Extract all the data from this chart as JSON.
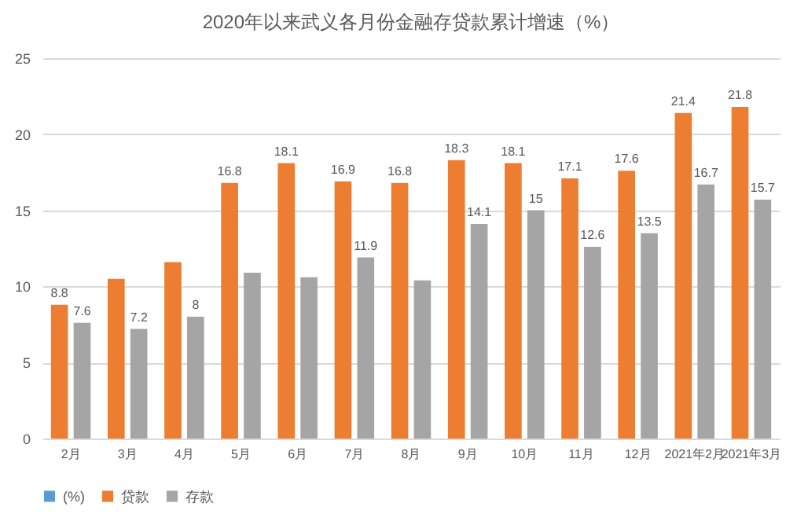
{
  "chart_data": {
    "type": "bar",
    "title": "2020年以来武义各月份金融存贷款累计增速（%）",
    "categories": [
      "2月",
      "3月",
      "4月",
      "5月",
      "6月",
      "7月",
      "8月",
      "9月",
      "10月",
      "11月",
      "12月",
      "2021年2月",
      "2021年3月"
    ],
    "series": [
      {
        "name": "(%)",
        "color": "#5b9bd5",
        "values": [
          null,
          null,
          null,
          null,
          null,
          null,
          null,
          null,
          null,
          null,
          null,
          null,
          null
        ]
      },
      {
        "name": "贷款",
        "color": "#ed7d31",
        "values": [
          8.8,
          10.5,
          11.6,
          16.8,
          18.1,
          16.9,
          16.8,
          18.3,
          18.1,
          17.1,
          17.6,
          21.4,
          21.8
        ],
        "value_labels": [
          "8.8",
          null,
          null,
          "16.8",
          "18.1",
          "16.9",
          "16.8",
          "18.3",
          "18.1",
          "17.1",
          "17.6",
          "21.4",
          "21.8"
        ]
      },
      {
        "name": "存款",
        "color": "#a5a5a5",
        "values": [
          7.6,
          7.2,
          8,
          10.9,
          10.6,
          11.9,
          10.4,
          14.1,
          15,
          12.6,
          13.5,
          16.7,
          15.7
        ],
        "value_labels": [
          "7.6",
          "7.2",
          "8",
          null,
          null,
          "11.9",
          null,
          "14.1",
          "15",
          "12.6",
          "13.5",
          "16.7",
          "15.7"
        ]
      }
    ],
    "ylim": [
      0,
      25
    ],
    "yticks": [
      0,
      5,
      10,
      15,
      20,
      25
    ],
    "grid": "y",
    "legend": "bottom"
  }
}
